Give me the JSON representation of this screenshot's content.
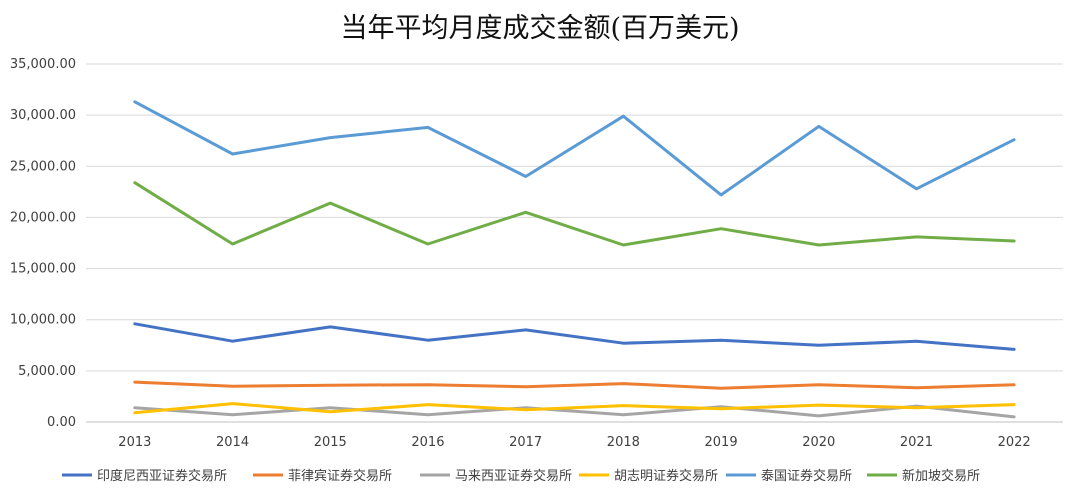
{
  "chart_data": {
    "type": "line",
    "title": "当年平均月度成交金额(百万美元)",
    "xlabel": "",
    "ylabel": "",
    "ylim": [
      0,
      35000
    ],
    "y_ticks": [
      "0.00",
      "5,000.00",
      "10,000.00",
      "15,000.00",
      "20,000.00",
      "25,000.00",
      "30,000.00",
      "35,000.00"
    ],
    "y_tick_values": [
      0,
      5000,
      10000,
      15000,
      20000,
      25000,
      30000,
      35000
    ],
    "x": [
      "2013",
      "2014",
      "2015",
      "2016",
      "2017",
      "2018",
      "2019",
      "2020",
      "2021",
      "2022"
    ],
    "grid": "horizontal",
    "legend_position": "bottom",
    "series": [
      {
        "name": "印度尼西亚证券交易所",
        "color": "#4472C4",
        "values": [
          9600,
          7900,
          9300,
          8000,
          9000,
          7700,
          8000,
          7500,
          7900,
          7100
        ]
      },
      {
        "name": "菲律宾证券交易所",
        "color": "#ED7D31",
        "values": [
          3900,
          3500,
          3600,
          3650,
          3450,
          3750,
          3300,
          3650,
          3350,
          3650
        ]
      },
      {
        "name": "马来西亚证券交易所",
        "color": "#A5A5A5",
        "values": [
          1400,
          700,
          1400,
          700,
          1400,
          700,
          1500,
          600,
          1550,
          500
        ]
      },
      {
        "name": "胡志明证券交易所",
        "color": "#FFC000",
        "values": [
          900,
          1800,
          1000,
          1700,
          1200,
          1600,
          1300,
          1650,
          1400,
          1700
        ]
      },
      {
        "name": "泰国证券交易所",
        "color": "#5B9BD5",
        "values": [
          31300,
          26200,
          27800,
          28800,
          24000,
          29900,
          22200,
          28900,
          22800,
          27600
        ]
      },
      {
        "name": "新加坡交易所",
        "color": "#70AD47",
        "values": [
          23400,
          17400,
          21400,
          17400,
          20500,
          17300,
          18900,
          17300,
          18100,
          17700
        ]
      }
    ]
  }
}
